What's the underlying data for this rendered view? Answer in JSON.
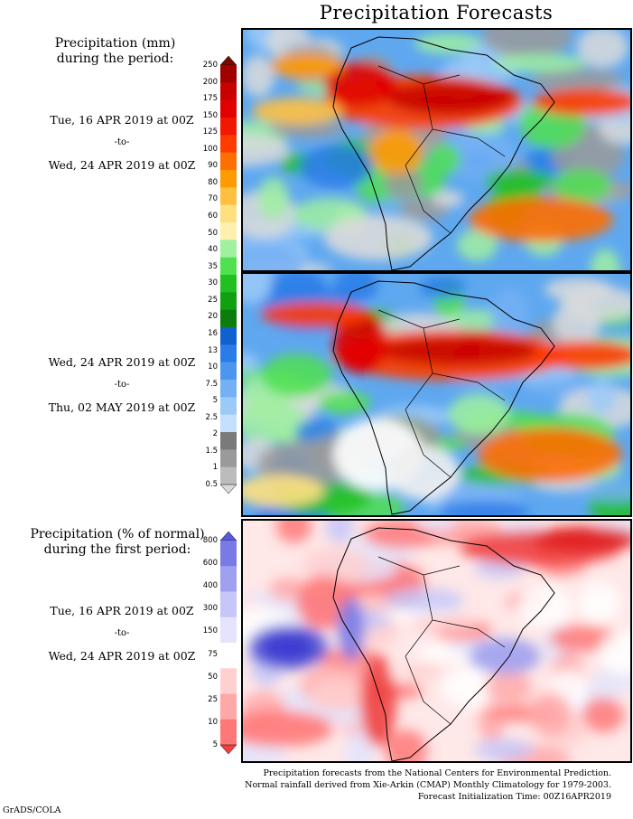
{
  "title": "Precipitation Forecasts",
  "section1": {
    "heading": [
      "Precipitation (mm)",
      "during the period:"
    ],
    "period1": {
      "from": "Tue, 16 APR 2019 at 00Z",
      "to": "-to-",
      "end": "Wed, 24 APR 2019 at 00Z"
    },
    "period2": {
      "from": "Wed, 24 APR 2019 at 00Z",
      "to": "-to-",
      "end": "Thu, 02 MAY 2019 at 00Z"
    },
    "colorbar": {
      "labels": [
        "250",
        "200",
        "175",
        "150",
        "125",
        "100",
        "90",
        "80",
        "70",
        "60",
        "50",
        "40",
        "35",
        "30",
        "25",
        "20",
        "16",
        "13",
        "10",
        "7.5",
        "5",
        "2.5",
        "2",
        "1.5",
        "1",
        "0.5"
      ],
      "colors": [
        "#7a0a00",
        "#a00000",
        "#c80000",
        "#e00000",
        "#f01800",
        "#ff3c00",
        "#ff6e00",
        "#ff9a00",
        "#ffc040",
        "#ffe080",
        "#fff0b0",
        "#a0f0a0",
        "#50e050",
        "#20c020",
        "#10a010",
        "#0c7c0c",
        "#1060d0",
        "#2a7ce8",
        "#4c96f0",
        "#74b0f4",
        "#9ccaf8",
        "#c4e0fc",
        "#7a7a7a",
        "#9a9a9a",
        "#bcbcbc",
        "#dadada"
      ]
    }
  },
  "section2": {
    "heading": [
      "Precipitation (% of normal)",
      "during the first period:"
    ],
    "period": {
      "from": "Tue, 16 APR 2019 at 00Z",
      "to": "-to-",
      "end": "Wed, 24 APR 2019 at 00Z"
    },
    "colorbar": {
      "labels": [
        "800",
        "600",
        "400",
        "300",
        "150",
        "75",
        "50",
        "25",
        "10",
        "5"
      ],
      "colors": [
        "#5a5ad8",
        "#7a7ae6",
        "#a0a0f0",
        "#c6c6f8",
        "#e4e4fc",
        "#ffffff",
        "#ffd0d0",
        "#ffa8a8",
        "#ff7878",
        "#f04040"
      ]
    }
  },
  "footer": [
    "Precipitation forecasts from the National Centers for Environmental Prediction.",
    "Normal rainfall derived from Xie-Arkin (CMAP) Monthly Climatology for 1979-2003.",
    "Forecast Initialization Time: 00Z16APR2019"
  ],
  "credit": "GrADS/COLA"
}
